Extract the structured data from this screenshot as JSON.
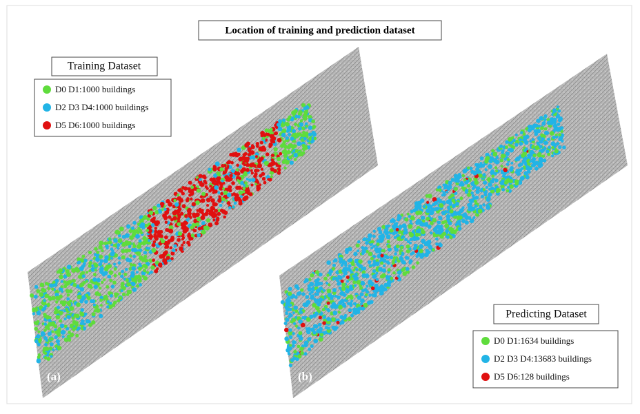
{
  "title": "Location of training and prediction dataset",
  "panels": [
    {
      "label": "(a)",
      "legend_title": "Training Dataset",
      "items": [
        {
          "label": "D0 D1:1000 buildings",
          "color": "#5fdc3c"
        },
        {
          "label": "D2 D3 D4:1000 buildings",
          "color": "#22b4e6"
        },
        {
          "label": "D5 D6:1000 buildings",
          "color": "#e01010"
        }
      ]
    },
    {
      "label": "(b)",
      "legend_title": "Predicting Dataset",
      "items": [
        {
          "label": "D0 D1:1634 buildings",
          "color": "#5fdc3c"
        },
        {
          "label": "D2 D3 D4:13683 buildings",
          "color": "#22b4e6"
        },
        {
          "label": "D5 D6:128 buildings",
          "color": "#e01010"
        }
      ]
    }
  ]
}
